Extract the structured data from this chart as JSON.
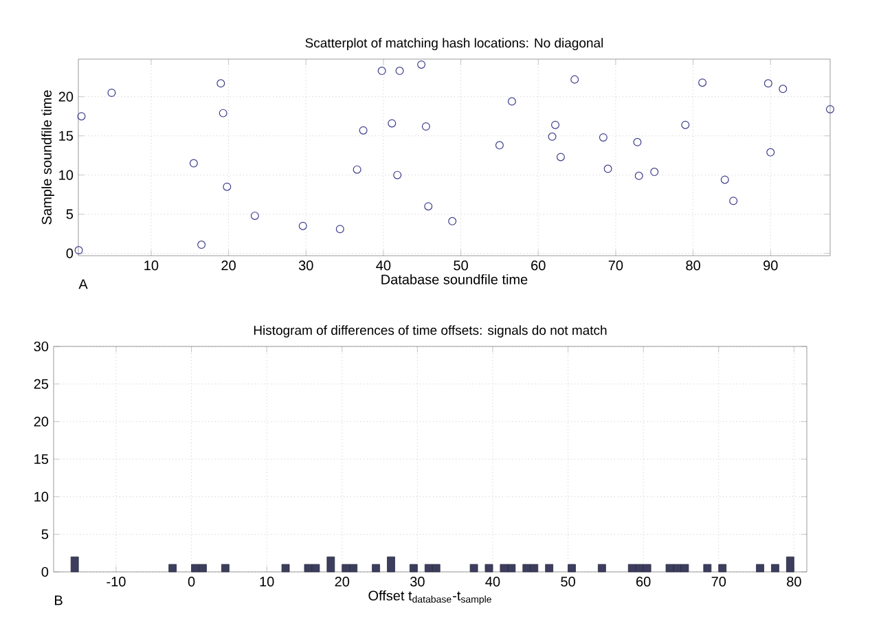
{
  "chart_data": [
    {
      "type": "scatter",
      "title": "Scatterplot of matching hash locations:  No diagonal",
      "xlabel": "Database soundfile time",
      "ylabel": "Sample soundfile time",
      "annotations": [
        "A"
      ],
      "x": [
        0.65,
        1.0,
        4.9,
        15.5,
        16.5,
        19.0,
        19.3,
        19.8,
        23.4,
        29.6,
        34.4,
        36.6,
        37.4,
        39.8,
        41.1,
        41.8,
        42.1,
        44.9,
        45.5,
        45.8,
        48.9,
        55.0,
        56.6,
        61.8,
        62.2,
        62.9,
        64.7,
        68.4,
        69.0,
        72.8,
        73.0,
        75.0,
        79.0,
        81.2,
        84.1,
        85.2,
        89.7,
        90.0,
        91.6,
        97.7
      ],
      "values": [
        0.4,
        17.5,
        20.5,
        11.5,
        1.1,
        21.7,
        17.9,
        8.5,
        4.8,
        3.5,
        3.1,
        10.7,
        15.7,
        23.3,
        16.6,
        10.0,
        23.3,
        24.1,
        16.2,
        6.0,
        4.1,
        13.8,
        19.4,
        14.9,
        16.4,
        12.3,
        22.2,
        14.8,
        10.8,
        14.2,
        9.9,
        10.4,
        16.4,
        21.8,
        9.4,
        6.7,
        21.7,
        12.9,
        21.0,
        18.4
      ],
      "color": "#3c3c8c",
      "marker": "circle",
      "xlim": [
        0.6,
        97.7
      ],
      "ylim": [
        -0.3,
        24.8
      ],
      "xticks": [
        10,
        20,
        30,
        40,
        50,
        60,
        70,
        80,
        90
      ],
      "yticks": [
        0,
        5,
        10,
        15,
        20
      ],
      "grid": true
    },
    {
      "type": "histogram",
      "title": "Histogram of differences of time offsets: signals do not match",
      "xlabel": "Offset t$_{database}$-t$_{sample}$",
      "annotations": [
        "B"
      ],
      "bins": [
        -18,
        -17,
        -16,
        -15,
        -14,
        -13,
        -12,
        -11,
        -10,
        -9,
        -8,
        -7,
        -6,
        -5,
        -4,
        -3,
        -2,
        -1,
        0,
        1,
        2,
        3,
        4,
        5,
        6,
        7,
        8,
        9,
        10,
        11,
        12,
        13,
        14,
        15,
        16,
        17,
        18,
        19,
        20,
        21,
        22,
        23,
        24,
        25,
        26,
        27,
        28,
        29,
        30,
        31,
        32,
        33,
        34,
        35,
        36,
        37,
        38,
        39,
        40,
        41,
        42,
        43,
        44,
        45,
        46,
        47,
        48,
        49,
        50,
        51,
        52,
        53,
        54,
        55,
        56,
        57,
        58,
        59,
        60,
        61,
        62,
        63,
        64,
        65,
        66,
        67,
        68,
        69,
        70,
        71,
        72,
        73,
        74,
        75,
        76,
        77,
        78,
        79,
        80,
        81
      ],
      "values": [
        0,
        0,
        2,
        0,
        0,
        0,
        0,
        0,
        0,
        0,
        0,
        0,
        0,
        0,
        0,
        1,
        0,
        0,
        1,
        1,
        0,
        0,
        1,
        0,
        0,
        0,
        0,
        0,
        0,
        0,
        1,
        0,
        0,
        1,
        1,
        0,
        2,
        0,
        1,
        1,
        0,
        0,
        1,
        0,
        2,
        0,
        0,
        1,
        0,
        1,
        1,
        0,
        0,
        0,
        0,
        1,
        0,
        1,
        0,
        1,
        1,
        0,
        1,
        1,
        0,
        1,
        0,
        0,
        1,
        0,
        0,
        0,
        1,
        0,
        0,
        0,
        1,
        1,
        1,
        0,
        0,
        1,
        1,
        1,
        0,
        0,
        1,
        0,
        1,
        0,
        0,
        0,
        0,
        1,
        0,
        1,
        0,
        2,
        0
      ],
      "color": "#3d3d5e",
      "xlim": [
        -18.3,
        81.7
      ],
      "ylim": [
        0,
        30
      ],
      "xticks": [
        -10,
        0,
        10,
        20,
        30,
        40,
        50,
        60,
        70,
        80
      ],
      "yticks": [
        0,
        5,
        10,
        15,
        20,
        25,
        30
      ],
      "grid": true
    }
  ]
}
